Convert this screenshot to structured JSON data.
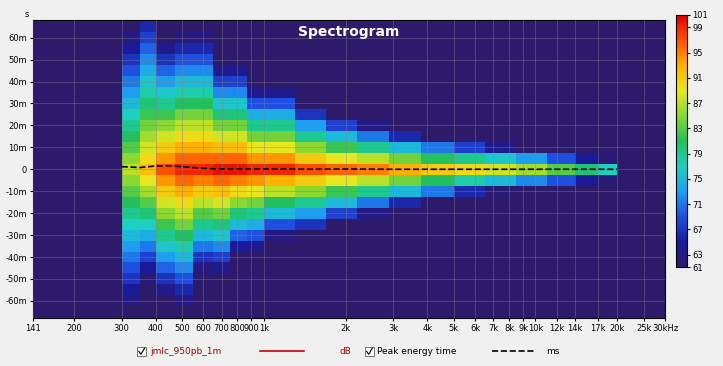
{
  "chart_data": {
    "type": "heatmap",
    "title": "Spectrogram",
    "y_label": "s",
    "log": "x",
    "grid": true,
    "xlim": [
      141,
      30000
    ],
    "xticks": [
      141,
      200,
      300,
      400,
      500,
      600,
      700,
      800,
      900,
      {
        "value": 1000,
        "label": "1k"
      },
      {
        "value": 2000,
        "label": "2k"
      },
      {
        "value": 3000,
        "label": "3k"
      },
      {
        "value": 4000,
        "label": "4k"
      },
      {
        "value": 5000,
        "label": "5k"
      },
      {
        "value": 6000,
        "label": "6k"
      },
      {
        "value": 7000,
        "label": "7k"
      },
      {
        "value": 8000,
        "label": "8k"
      },
      {
        "value": 9000,
        "label": "9k"
      },
      {
        "value": 10000,
        "label": "10k"
      },
      {
        "value": 12000,
        "label": "12k"
      },
      {
        "value": 14000,
        "label": "14k"
      },
      {
        "value": 17000,
        "label": "17k"
      },
      {
        "value": 20000,
        "label": "20k"
      },
      {
        "value": 25000,
        "label": "25k"
      },
      {
        "value": 30000,
        "label": "30kHz"
      }
    ],
    "ylim": [
      -0.068,
      0.068
    ],
    "yticks": [
      {
        "value": -0.06,
        "label": "-60m"
      },
      {
        "value": -0.05,
        "label": "-50m"
      },
      {
        "value": -0.04,
        "label": "-40m"
      },
      {
        "value": -0.03,
        "label": "-30m"
      },
      {
        "value": -0.02,
        "label": "-20m"
      },
      {
        "value": -0.01,
        "label": "-10m"
      },
      0,
      {
        "value": 0.01,
        "label": "10m"
      },
      {
        "value": 0.02,
        "label": "20m"
      },
      {
        "value": 0.03,
        "label": "30m"
      },
      {
        "value": 0.04,
        "label": "40m"
      },
      {
        "value": 0.05,
        "label": "50m"
      },
      {
        "value": 0.06,
        "label": "60m"
      }
    ],
    "heatmap": {
      "name": "jmlc_950pb_1m",
      "color": "#cc0000",
      "unit": "dB",
      "x_edges": [
        300,
        350,
        400,
        470,
        550,
        650,
        750,
        870,
        1000,
        1300,
        1700,
        2200,
        2900,
        3800,
        5000,
        6500,
        8500,
        11000,
        14000,
        17000,
        20000
      ],
      "y_edges": [
        -0.0675,
        -0.0625,
        -0.0575,
        -0.0525,
        -0.0475,
        -0.0425,
        -0.0375,
        -0.0325,
        -0.0275,
        -0.0225,
        -0.0175,
        -0.0125,
        -0.0075,
        -0.0025,
        0.0025,
        0.0075,
        0.0125,
        0.0175,
        0.0225,
        0.0275,
        0.0325,
        0.0375,
        0.0425,
        0.0475,
        0.0525,
        0.0575,
        0.0625,
        0.0675
      ],
      "z_by_x": [
        [
          61,
          63,
          65,
          67,
          69,
          71,
          73,
          75,
          77,
          79,
          81,
          83,
          85,
          87,
          85,
          83,
          81,
          79,
          77,
          75,
          73,
          71,
          69,
          67,
          65,
          63,
          61
        ],
        [
          null,
          null,
          null,
          62,
          65,
          68,
          71,
          74,
          77,
          80,
          83,
          86,
          89,
          92,
          90,
          88,
          86,
          84,
          82,
          80,
          78,
          76,
          74,
          72,
          70,
          68,
          66
        ],
        [
          null,
          61,
          64,
          67,
          70,
          73,
          76,
          79,
          82,
          85,
          88,
          91,
          94,
          97,
          94,
          91,
          88,
          85,
          82,
          79,
          76,
          73,
          70,
          67,
          64,
          61,
          null
        ],
        [
          null,
          63,
          66,
          69,
          72,
          75,
          78,
          81,
          84,
          87,
          90,
          93,
          96,
          99,
          96,
          93,
          90,
          87,
          84,
          81,
          78,
          75,
          72,
          69,
          66,
          63,
          null
        ],
        [
          null,
          null,
          null,
          null,
          63,
          67,
          71,
          75,
          79,
          83,
          87,
          91,
          95,
          99,
          96,
          93,
          90,
          87,
          84,
          81,
          78,
          75,
          72,
          69,
          66,
          63,
          null
        ],
        [
          null,
          null,
          null,
          null,
          64,
          68,
          72,
          76,
          80,
          84,
          88,
          92,
          96,
          100,
          96,
          92,
          88,
          84,
          80,
          76,
          72,
          68,
          64,
          null,
          null,
          null,
          null
        ],
        [
          null,
          null,
          null,
          null,
          null,
          null,
          65,
          70,
          75,
          80,
          85,
          90,
          95,
          100,
          96,
          92,
          88,
          84,
          80,
          76,
          72,
          68,
          64,
          null,
          null,
          null,
          null
        ],
        [
          null,
          null,
          null,
          null,
          null,
          null,
          64,
          69,
          74,
          79,
          84,
          89,
          94,
          99,
          94,
          89,
          84,
          79,
          74,
          69,
          64,
          null,
          null,
          null,
          null,
          null,
          null
        ],
        [
          null,
          null,
          null,
          null,
          null,
          null,
          null,
          63,
          69,
          75,
          81,
          87,
          93,
          99,
          94,
          89,
          84,
          79,
          74,
          69,
          64,
          null,
          null,
          null,
          null,
          null,
          null
        ],
        [
          null,
          null,
          null,
          null,
          null,
          null,
          null,
          61,
          67,
          73,
          79,
          85,
          91,
          97,
          91,
          85,
          79,
          73,
          67,
          61,
          null,
          null,
          null,
          null,
          null,
          null,
          null
        ],
        [
          null,
          null,
          null,
          null,
          null,
          null,
          null,
          null,
          61,
          68,
          75,
          82,
          89,
          96,
          89,
          82,
          75,
          68,
          61,
          null,
          null,
          null,
          null,
          null,
          null,
          null,
          null
        ],
        [
          null,
          null,
          null,
          null,
          null,
          null,
          null,
          null,
          null,
          63,
          71,
          79,
          87,
          95,
          87,
          79,
          71,
          63,
          null,
          null,
          null,
          null,
          null,
          null,
          null,
          null,
          null
        ],
        [
          null,
          null,
          null,
          null,
          null,
          null,
          null,
          null,
          null,
          null,
          66,
          75,
          84,
          93,
          84,
          75,
          66,
          null,
          null,
          null,
          null,
          null,
          null,
          null,
          null,
          null,
          null
        ],
        [
          null,
          null,
          null,
          null,
          null,
          null,
          null,
          null,
          null,
          null,
          61,
          71,
          81,
          91,
          81,
          71,
          61,
          null,
          null,
          null,
          null,
          null,
          null,
          null,
          null,
          null,
          null
        ],
        [
          null,
          null,
          null,
          null,
          null,
          null,
          null,
          null,
          null,
          null,
          null,
          66,
          78,
          90,
          79,
          68,
          null,
          null,
          null,
          null,
          null,
          null,
          null,
          null,
          null,
          null,
          null
        ],
        [
          null,
          null,
          null,
          null,
          null,
          null,
          null,
          null,
          null,
          null,
          null,
          62,
          75,
          88,
          76,
          64,
          null,
          null,
          null,
          null,
          null,
          null,
          null,
          null,
          null,
          null,
          null
        ],
        [
          null,
          null,
          null,
          null,
          null,
          null,
          null,
          null,
          null,
          null,
          null,
          null,
          72,
          86,
          73,
          null,
          null,
          null,
          null,
          null,
          null,
          null,
          null,
          null,
          null,
          null,
          null
        ],
        [
          null,
          null,
          null,
          null,
          null,
          null,
          null,
          null,
          null,
          null,
          null,
          null,
          69,
          83,
          69,
          null,
          null,
          null,
          null,
          null,
          null,
          null,
          null,
          null,
          null,
          null,
          null
        ],
        [
          null,
          null,
          null,
          null,
          null,
          null,
          null,
          null,
          null,
          null,
          null,
          null,
          65,
          80,
          65,
          null,
          null,
          null,
          null,
          null,
          null,
          null,
          null,
          null,
          null,
          null,
          null
        ],
        [
          null,
          null,
          null,
          null,
          null,
          null,
          null,
          null,
          null,
          null,
          null,
          null,
          62,
          77,
          62,
          null,
          null,
          null,
          null,
          null,
          null,
          null,
          null,
          null,
          null,
          null,
          null
        ]
      ]
    },
    "colorbar": {
      "range": [
        61,
        101
      ],
      "ticks": [
        61,
        63,
        67,
        71,
        75,
        79,
        83,
        87,
        91,
        95,
        99,
        101
      ]
    },
    "series": [
      {
        "name": "Peak energy time",
        "color": "#000000",
        "line_style": "dashed",
        "unit": "ms",
        "x": [
          300,
          350,
          400,
          450,
          500,
          600,
          700,
          800,
          1000,
          1500,
          2000,
          3000,
          5000,
          10000,
          20000
        ],
        "values": [
          0.0012,
          0.0008,
          0.0015,
          0.0016,
          0.0012,
          0.0004,
          0.0001,
          0.0002,
          0.0001,
          0.0,
          0.0001,
          0.0,
          0.0,
          0.0,
          0.0
        ]
      }
    ]
  }
}
